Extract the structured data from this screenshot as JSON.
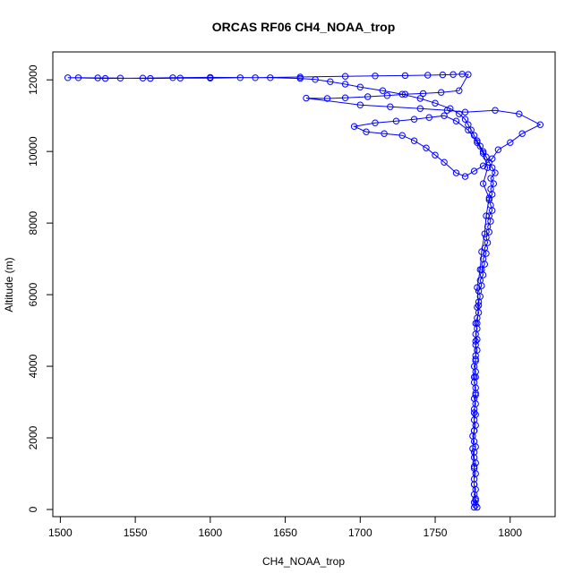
{
  "chart_data": {
    "type": "scatter",
    "title": "ORCAS RF06 CH4_NOAA_trop",
    "xlabel": "CH4_NOAA_trop",
    "ylabel": "Altitude (m)",
    "xlim": [
      1495,
      1830
    ],
    "ylim": [
      -200,
      12780
    ],
    "x_ticks": [
      1500,
      1550,
      1600,
      1650,
      1700,
      1750,
      1800
    ],
    "y_ticks": [
      0,
      2000,
      4000,
      6000,
      8000,
      10000,
      12000
    ],
    "grid": false,
    "legend": "none",
    "colors": {
      "series": "#0000ff",
      "axis": "#000000",
      "background": "#ffffff"
    },
    "series": [
      {
        "marker": "open-circle",
        "connected": true,
        "points": [
          [
            1776,
            60
          ],
          [
            1777,
            120
          ],
          [
            1776,
            200
          ],
          [
            1777,
            300
          ],
          [
            1776,
            420
          ],
          [
            1777,
            560
          ],
          [
            1776,
            700
          ],
          [
            1776,
            850
          ],
          [
            1777,
            1000
          ],
          [
            1776,
            1150
          ],
          [
            1777,
            1300
          ],
          [
            1776,
            1450
          ],
          [
            1776,
            1600
          ],
          [
            1777,
            1750
          ],
          [
            1776,
            1900
          ],
          [
            1775,
            2050
          ],
          [
            1776,
            2200
          ],
          [
            1777,
            2350
          ],
          [
            1776,
            2500
          ],
          [
            1777,
            2650
          ],
          [
            1776,
            2800
          ],
          [
            1777,
            2950
          ],
          [
            1776,
            3100
          ],
          [
            1777,
            3250
          ],
          [
            1777,
            3400
          ],
          [
            1776,
            3550
          ],
          [
            1777,
            3700
          ],
          [
            1777,
            3850
          ],
          [
            1776,
            4000
          ],
          [
            1777,
            4150
          ],
          [
            1777,
            4300
          ],
          [
            1778,
            4450
          ],
          [
            1777,
            4600
          ],
          [
            1778,
            4750
          ],
          [
            1777,
            4900
          ],
          [
            1778,
            5050
          ],
          [
            1777,
            5200
          ],
          [
            1778,
            5350
          ],
          [
            1779,
            5500
          ],
          [
            1778,
            5650
          ],
          [
            1779,
            5800
          ],
          [
            1780,
            5950
          ],
          [
            1779,
            6100
          ],
          [
            1781,
            6250
          ],
          [
            1780,
            6400
          ],
          [
            1782,
            6550
          ],
          [
            1781,
            6700
          ],
          [
            1783,
            6850
          ],
          [
            1782,
            7000
          ],
          [
            1784,
            7150
          ],
          [
            1783,
            7300
          ],
          [
            1785,
            7450
          ],
          [
            1784,
            7600
          ],
          [
            1786,
            7750
          ],
          [
            1785,
            7900
          ],
          [
            1787,
            8050
          ],
          [
            1786,
            8200
          ],
          [
            1788,
            8350
          ],
          [
            1787,
            8500
          ],
          [
            1786,
            8650
          ],
          [
            1788,
            8800
          ],
          [
            1787,
            8950
          ],
          [
            1789,
            9100
          ],
          [
            1787,
            9250
          ],
          [
            1790,
            9400
          ],
          [
            1788,
            9550
          ],
          [
            1786,
            9700
          ],
          [
            1784,
            9850
          ],
          [
            1782,
            10000
          ],
          [
            1780,
            10150
          ],
          [
            1778,
            10300
          ],
          [
            1776,
            10450
          ],
          [
            1774,
            10600
          ],
          [
            1772,
            10750
          ],
          [
            1770,
            10900
          ],
          [
            1766,
            11050
          ],
          [
            1760,
            11200
          ],
          [
            1750,
            11350
          ],
          [
            1740,
            11480
          ],
          [
            1728,
            11600
          ],
          [
            1715,
            11700
          ],
          [
            1700,
            11800
          ],
          [
            1690,
            11880
          ],
          [
            1680,
            11950
          ],
          [
            1670,
            12010
          ],
          [
            1660,
            12040
          ],
          [
            1640,
            12060
          ],
          [
            1620,
            12060
          ],
          [
            1600,
            12050
          ],
          [
            1580,
            12050
          ],
          [
            1560,
            12040
          ],
          [
            1540,
            12050
          ],
          [
            1525,
            12055
          ],
          [
            1512,
            12060
          ],
          [
            1505,
            12060
          ],
          [
            1530,
            12040
          ],
          [
            1555,
            12050
          ],
          [
            1575,
            12060
          ],
          [
            1600,
            12070
          ],
          [
            1630,
            12060
          ],
          [
            1660,
            12080
          ],
          [
            1690,
            12100
          ],
          [
            1710,
            12110
          ],
          [
            1730,
            12120
          ],
          [
            1745,
            12130
          ],
          [
            1755,
            12140
          ],
          [
            1762,
            12150
          ],
          [
            1768,
            12160
          ],
          [
            1772,
            12150
          ],
          [
            1766,
            11700
          ],
          [
            1754,
            11650
          ],
          [
            1742,
            11620
          ],
          [
            1730,
            11600
          ],
          [
            1718,
            11560
          ],
          [
            1705,
            11530
          ],
          [
            1690,
            11500
          ],
          [
            1678,
            11480
          ],
          [
            1664,
            11490
          ],
          [
            1700,
            11300
          ],
          [
            1720,
            11250
          ],
          [
            1740,
            11200
          ],
          [
            1758,
            11150
          ],
          [
            1770,
            11100
          ],
          [
            1790,
            11150
          ],
          [
            1806,
            11050
          ],
          [
            1820,
            10750
          ],
          [
            1808,
            10500
          ],
          [
            1800,
            10250
          ],
          [
            1792,
            10050
          ],
          [
            1788,
            9800
          ],
          [
            1782,
            9600
          ],
          [
            1776,
            9450
          ],
          [
            1770,
            9300
          ],
          [
            1764,
            9400
          ],
          [
            1756,
            9700
          ],
          [
            1750,
            9900
          ],
          [
            1744,
            10100
          ],
          [
            1736,
            10300
          ],
          [
            1728,
            10450
          ],
          [
            1716,
            10500
          ],
          [
            1704,
            10550
          ],
          [
            1696,
            10700
          ],
          [
            1710,
            10800
          ],
          [
            1724,
            10850
          ],
          [
            1736,
            10900
          ],
          [
            1746,
            10950
          ],
          [
            1756,
            11000
          ],
          [
            1764,
            10850
          ],
          [
            1772,
            10600
          ],
          [
            1778,
            10250
          ],
          [
            1782,
            9950
          ],
          [
            1785,
            9550
          ],
          [
            1782,
            9100
          ],
          [
            1786,
            8700
          ],
          [
            1784,
            8200
          ],
          [
            1783,
            7700
          ],
          [
            1781,
            7200
          ],
          [
            1780,
            6700
          ],
          [
            1778,
            6200
          ],
          [
            1779,
            5700
          ],
          [
            1778,
            5200
          ],
          [
            1777,
            4700
          ],
          [
            1777,
            4200
          ],
          [
            1776,
            3700
          ],
          [
            1777,
            3200
          ],
          [
            1776,
            2700
          ],
          [
            1776,
            2200
          ],
          [
            1775,
            1700
          ],
          [
            1776,
            1200
          ],
          [
            1776,
            700
          ],
          [
            1777,
            250
          ],
          [
            1778,
            60
          ]
        ]
      }
    ]
  }
}
